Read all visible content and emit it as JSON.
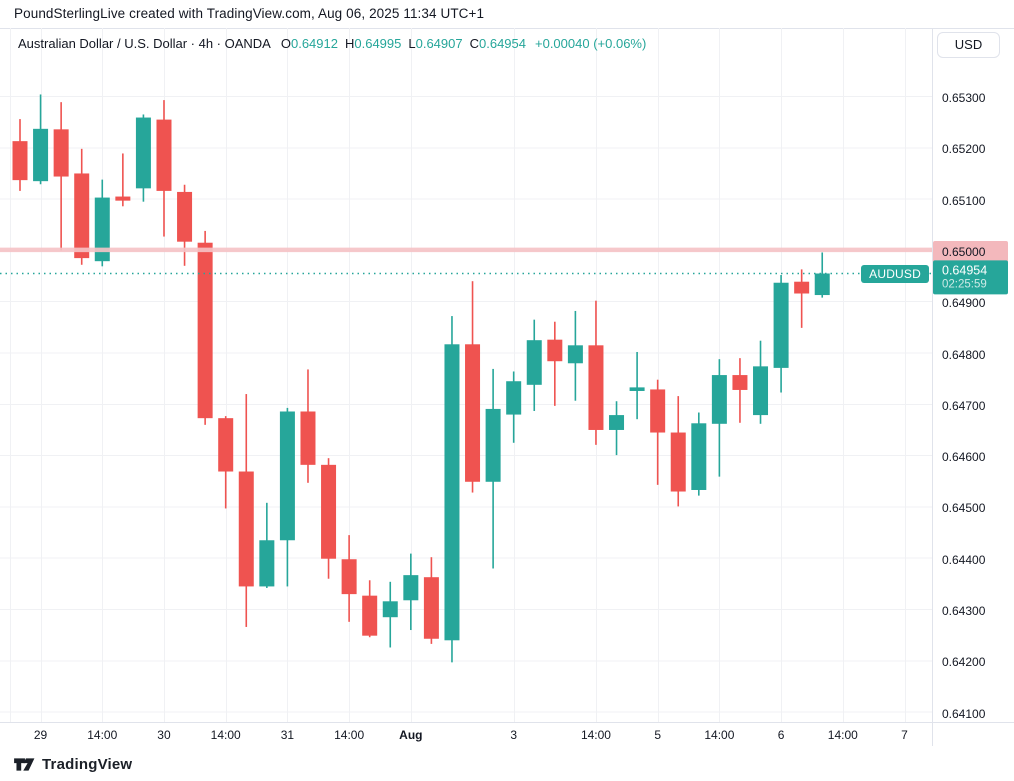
{
  "attribution": "PoundSterlingLive created with TradingView.com, Aug 06, 2025 11:34 UTC+1",
  "legend": {
    "symbol_title": "Australian Dollar / U.S. Dollar",
    "separator": "·",
    "interval": "4h",
    "exchange": "OANDA",
    "ohlc": [
      {
        "label": "O",
        "value": "0.64912"
      },
      {
        "label": "H",
        "value": "0.64995"
      },
      {
        "label": "L",
        "value": "0.64907"
      },
      {
        "label": "C",
        "value": "0.64954"
      }
    ],
    "change": "+0.00040 (+0.06%)"
  },
  "price_scale": {
    "currency_button": "USD",
    "ticks": [
      "0.65300",
      "0.65200",
      "0.65100",
      "0.65000",
      "0.64900",
      "0.64800",
      "0.64700",
      "0.64600",
      "0.64500",
      "0.64400",
      "0.64300",
      "0.64200",
      "0.64100"
    ]
  },
  "footer": {
    "logo_text": "TradingView"
  },
  "colors": {
    "up": "#26a69a",
    "down": "#ef5350",
    "grid": "#f0f1f4",
    "border": "#e0e3eb",
    "axis_text": "#131722",
    "background": "#ffffff",
    "price_line": "#f6c3c6",
    "price_line_label_bg": "#f3b8bc",
    "last_price_bg": "#26a69a"
  },
  "chart_data": {
    "type": "candlestick",
    "symbol": "AUDUSD",
    "title": "Australian Dollar / U.S. Dollar",
    "timeframe": "4h",
    "exchange": "OANDA",
    "y_axis": {
      "ticks": [
        0.653,
        0.652,
        0.651,
        0.65,
        0.649,
        0.648,
        0.647,
        0.646,
        0.645,
        0.644,
        0.643,
        0.642,
        0.641
      ],
      "visible_range": [
        0.64055,
        0.65355
      ],
      "grid": true
    },
    "x_axis": {
      "ticks": [
        {
          "label": "29",
          "slot": 1,
          "bold": false
        },
        {
          "label": "14:00",
          "slot": 4,
          "bold": false
        },
        {
          "label": "30",
          "slot": 7,
          "bold": false
        },
        {
          "label": "14:00",
          "slot": 10,
          "bold": false
        },
        {
          "label": "31",
          "slot": 13,
          "bold": false
        },
        {
          "label": "14:00",
          "slot": 16,
          "bold": false
        },
        {
          "label": "Aug",
          "slot": 19,
          "bold": true
        },
        {
          "label": "3",
          "slot": 24,
          "bold": false
        },
        {
          "label": "14:00",
          "slot": 28,
          "bold": false
        },
        {
          "label": "5",
          "slot": 31,
          "bold": false
        },
        {
          "label": "14:00",
          "slot": 34,
          "bold": false
        },
        {
          "label": "6",
          "slot": 37,
          "bold": false
        },
        {
          "label": "14:00",
          "slot": 40,
          "bold": false
        },
        {
          "label": "7",
          "slot": 43,
          "bold": false
        }
      ]
    },
    "price_lines": [
      {
        "value": 0.65,
        "label": "0.65000",
        "style": "solid-pink"
      }
    ],
    "last_price": {
      "symbol_badge": "AUDUSD",
      "value": 0.64954,
      "label": "0.64954",
      "countdown": "02:25:59",
      "style": "dotted-teal"
    },
    "candles": [
      {
        "o": 0.65212,
        "h": 0.65255,
        "l": 0.65115,
        "c": 0.65136
      },
      {
        "o": 0.65134,
        "h": 0.65303,
        "l": 0.65128,
        "c": 0.65236
      },
      {
        "o": 0.65235,
        "h": 0.65288,
        "l": 0.64999,
        "c": 0.65143
      },
      {
        "o": 0.65149,
        "h": 0.65197,
        "l": 0.64971,
        "c": 0.64984
      },
      {
        "o": 0.64978,
        "h": 0.65137,
        "l": 0.64968,
        "c": 0.65102
      },
      {
        "o": 0.65104,
        "h": 0.65188,
        "l": 0.65085,
        "c": 0.65096
      },
      {
        "o": 0.6512,
        "h": 0.65264,
        "l": 0.65094,
        "c": 0.65258
      },
      {
        "o": 0.65254,
        "h": 0.65292,
        "l": 0.65026,
        "c": 0.65115
      },
      {
        "o": 0.65113,
        "h": 0.65127,
        "l": 0.64969,
        "c": 0.65016
      },
      {
        "o": 0.65014,
        "h": 0.65037,
        "l": 0.64659,
        "c": 0.64672
      },
      {
        "o": 0.64672,
        "h": 0.64676,
        "l": 0.64496,
        "c": 0.64568
      },
      {
        "o": 0.64568,
        "h": 0.64719,
        "l": 0.64265,
        "c": 0.64344
      },
      {
        "o": 0.64344,
        "h": 0.64507,
        "l": 0.64341,
        "c": 0.64434
      },
      {
        "o": 0.64434,
        "h": 0.64692,
        "l": 0.64344,
        "c": 0.64685
      },
      {
        "o": 0.64685,
        "h": 0.64767,
        "l": 0.64546,
        "c": 0.64581
      },
      {
        "o": 0.64581,
        "h": 0.64594,
        "l": 0.64359,
        "c": 0.64398
      },
      {
        "o": 0.64397,
        "h": 0.64444,
        "l": 0.64275,
        "c": 0.64329
      },
      {
        "o": 0.64326,
        "h": 0.64356,
        "l": 0.64245,
        "c": 0.64248
      },
      {
        "o": 0.64284,
        "h": 0.64353,
        "l": 0.64225,
        "c": 0.64315
      },
      {
        "o": 0.64317,
        "h": 0.64408,
        "l": 0.64259,
        "c": 0.64366
      },
      {
        "o": 0.64362,
        "h": 0.64401,
        "l": 0.64232,
        "c": 0.64242
      },
      {
        "o": 0.64239,
        "h": 0.64871,
        "l": 0.64196,
        "c": 0.64816
      },
      {
        "o": 0.64816,
        "h": 0.64939,
        "l": 0.64527,
        "c": 0.64548
      },
      {
        "o": 0.64548,
        "h": 0.64768,
        "l": 0.64379,
        "c": 0.6469
      },
      {
        "o": 0.64679,
        "h": 0.64763,
        "l": 0.64624,
        "c": 0.64744
      },
      {
        "o": 0.64737,
        "h": 0.64864,
        "l": 0.64686,
        "c": 0.64824
      },
      {
        "o": 0.64825,
        "h": 0.6486,
        "l": 0.64696,
        "c": 0.64783
      },
      {
        "o": 0.64779,
        "h": 0.64881,
        "l": 0.64706,
        "c": 0.64814
      },
      {
        "o": 0.64814,
        "h": 0.64901,
        "l": 0.6462,
        "c": 0.64649
      },
      {
        "o": 0.64649,
        "h": 0.64705,
        "l": 0.646,
        "c": 0.64678
      },
      {
        "o": 0.64725,
        "h": 0.64801,
        "l": 0.6467,
        "c": 0.64732
      },
      {
        "o": 0.64728,
        "h": 0.64747,
        "l": 0.64542,
        "c": 0.64644
      },
      {
        "o": 0.64644,
        "h": 0.64715,
        "l": 0.645,
        "c": 0.64529
      },
      {
        "o": 0.64532,
        "h": 0.64683,
        "l": 0.64521,
        "c": 0.64662
      },
      {
        "o": 0.64661,
        "h": 0.64787,
        "l": 0.64558,
        "c": 0.64756
      },
      {
        "o": 0.64756,
        "h": 0.64789,
        "l": 0.64663,
        "c": 0.64727
      },
      {
        "o": 0.64678,
        "h": 0.64823,
        "l": 0.64661,
        "c": 0.64773
      },
      {
        "o": 0.6477,
        "h": 0.64951,
        "l": 0.64722,
        "c": 0.64936
      },
      {
        "o": 0.64938,
        "h": 0.64962,
        "l": 0.64848,
        "c": 0.64915
      },
      {
        "o": 0.64912,
        "h": 0.64995,
        "l": 0.64907,
        "c": 0.64954
      }
    ]
  }
}
